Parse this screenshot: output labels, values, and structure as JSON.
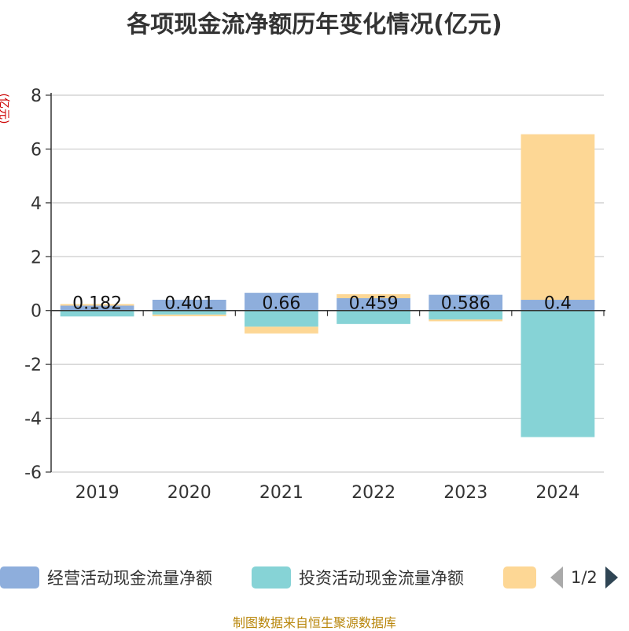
{
  "title": "各项现金流净额历年变化情况(亿元)",
  "y_unit": "(亿元)",
  "source_note": "制图数据来自恒生聚源数据库",
  "legend": {
    "items": [
      {
        "label": "经营活动现金流量净额",
        "color": "#8eaedc"
      },
      {
        "label": "投资活动现金流量净额",
        "color": "#86d3d6"
      },
      {
        "label": "",
        "color": "#fdd795"
      }
    ],
    "page_text": "1/2"
  },
  "chart_data": {
    "type": "bar",
    "stacked": true,
    "categories": [
      "2019",
      "2020",
      "2021",
      "2022",
      "2023",
      "2024"
    ],
    "series": [
      {
        "name": "经营活动现金流量净额",
        "color": "#8eaedc",
        "values": [
          0.182,
          0.401,
          0.66,
          0.459,
          0.586,
          0.4
        ],
        "show_labels": true
      },
      {
        "name": "投资活动现金流量净额",
        "color": "#86d3d6",
        "values": [
          -0.22,
          -0.15,
          -0.6,
          -0.5,
          -0.33,
          -4.7
        ],
        "show_labels": false
      },
      {
        "color": "#fdd795",
        "values": [
          0.06,
          -0.06,
          -0.25,
          0.15,
          -0.07,
          6.15
        ],
        "show_labels": false
      }
    ],
    "ylim": [
      -6,
      8
    ],
    "yticks": [
      -6,
      -4,
      -2,
      0,
      2,
      4,
      6,
      8
    ],
    "grid": true,
    "legend_position": "bottom"
  }
}
